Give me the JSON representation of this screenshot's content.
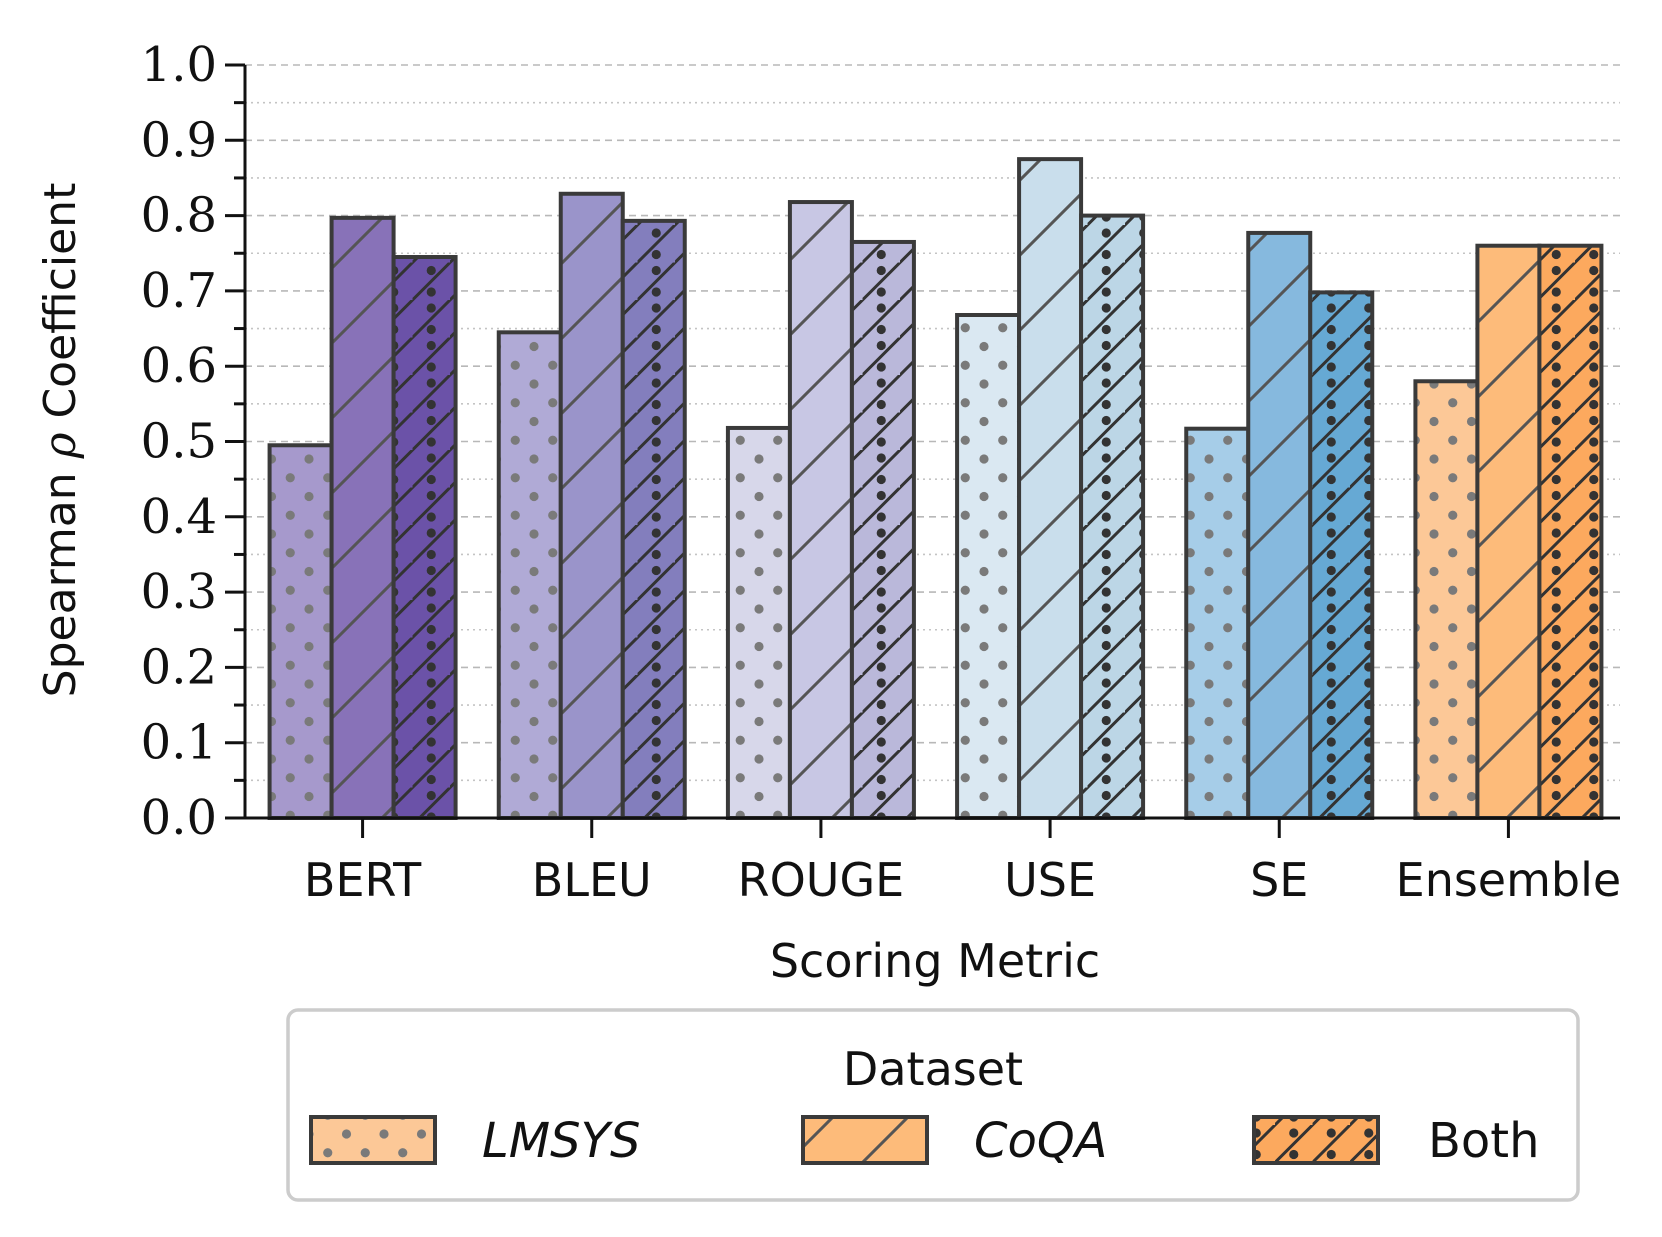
{
  "chart_data": {
    "type": "bar",
    "xlabel": "Scoring Metric",
    "ylabel": "Spearman ρ Coefficient",
    "ylim": [
      0,
      1.0
    ],
    "yticks": [
      "0.0",
      "0.1",
      "0.2",
      "0.3",
      "0.4",
      "0.5",
      "0.6",
      "0.7",
      "0.8",
      "0.9",
      "1.0"
    ],
    "categories": [
      "BERT",
      "BLEU",
      "ROUGE",
      "USE",
      "SE",
      "Ensemble"
    ],
    "series": [
      {
        "name": "LMSYS",
        "values": [
          0.495,
          0.645,
          0.518,
          0.668,
          0.517,
          0.58
        ]
      },
      {
        "name": "CoQA",
        "values": [
          0.797,
          0.829,
          0.818,
          0.875,
          0.777,
          0.76
        ]
      },
      {
        "name": "Both",
        "values": [
          0.745,
          0.793,
          0.765,
          0.8,
          0.698,
          0.76
        ]
      }
    ],
    "colors": {
      "BERT": [
        "#a699cc",
        "#8872b8",
        "#6b52a8"
      ],
      "BLEU": [
        "#b0aad6",
        "#9a94ca",
        "#837ebd"
      ],
      "ROUGE": [
        "#d7d7ea",
        "#c8c7e4",
        "#bab8da"
      ],
      "USE": [
        "#dae8f2",
        "#c9deec",
        "#bcd6e6"
      ],
      "SE": [
        "#a6cde8",
        "#86b9de",
        "#66a9d4"
      ],
      "Ensemble": [
        "#fcc897",
        "#fdbb7a",
        "#fca95e"
      ]
    },
    "grid": "horizontal dashed/dotted",
    "legend": {
      "title": "Dataset",
      "placement": "bottom-center",
      "entries": [
        "LMSYS",
        "CoQA",
        "Both"
      ],
      "swatch_color": "#fdbb7a"
    }
  }
}
